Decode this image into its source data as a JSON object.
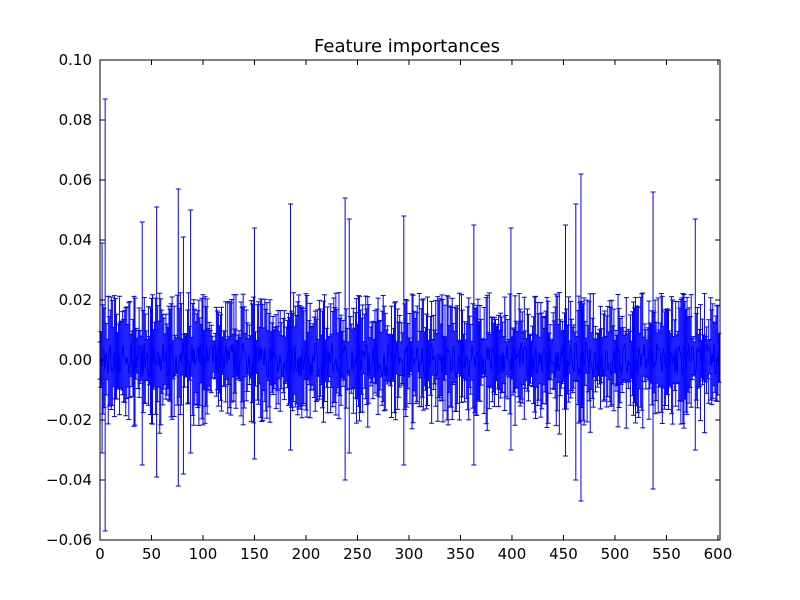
{
  "chart_data": {
    "type": "errorbar",
    "title": "Feature importances",
    "xlabel": "",
    "ylabel": "",
    "xlim": [
      0,
      602
    ],
    "ylim": [
      -0.06,
      0.1
    ],
    "xticks": [
      0,
      50,
      100,
      150,
      200,
      250,
      300,
      350,
      400,
      450,
      500,
      550,
      600
    ],
    "yticks": [
      -0.06,
      -0.04,
      -0.02,
      0.0,
      0.02,
      0.04,
      0.06,
      0.08,
      0.1
    ],
    "ytick_labels": [
      "−0.06",
      "−0.04",
      "−0.02",
      "0.00",
      "0.02",
      "0.04",
      "0.06",
      "0.08",
      "0.10"
    ],
    "xtick_labels": [
      "0",
      "50",
      "100",
      "150",
      "200",
      "250",
      "300",
      "350",
      "400",
      "450",
      "500",
      "550",
      "600"
    ],
    "grid": false,
    "color": "#0000ff",
    "num_features": 602,
    "series": [
      {
        "mean": 0.0,
        "notable_errors": [
          {
            "x": 5,
            "upper": 0.087,
            "lower": -0.057
          },
          {
            "x": 2,
            "upper": 0.039,
            "lower": -0.031
          },
          {
            "x": 41,
            "upper": 0.046,
            "lower": -0.035
          },
          {
            "x": 55,
            "upper": 0.051,
            "lower": -0.039
          },
          {
            "x": 76,
            "upper": 0.057,
            "lower": -0.042
          },
          {
            "x": 81,
            "upper": 0.041,
            "lower": -0.038
          },
          {
            "x": 88,
            "upper": 0.05,
            "lower": -0.031
          },
          {
            "x": 150,
            "upper": 0.044,
            "lower": -0.033
          },
          {
            "x": 185,
            "upper": 0.052,
            "lower": -0.03
          },
          {
            "x": 238,
            "upper": 0.054,
            "lower": -0.04
          },
          {
            "x": 242,
            "upper": 0.047,
            "lower": -0.031
          },
          {
            "x": 295,
            "upper": 0.048,
            "lower": -0.035
          },
          {
            "x": 363,
            "upper": 0.045,
            "lower": -0.035
          },
          {
            "x": 399,
            "upper": 0.044,
            "lower": -0.03
          },
          {
            "x": 452,
            "upper": 0.045,
            "lower": -0.032
          },
          {
            "x": 462,
            "upper": 0.052,
            "lower": -0.04
          },
          {
            "x": 467,
            "upper": 0.062,
            "lower": -0.047
          },
          {
            "x": 537,
            "upper": 0.056,
            "lower": -0.043
          },
          {
            "x": 578,
            "upper": 0.047,
            "lower": -0.03
          }
        ],
        "noise_amplitude": 0.015,
        "seed": 7
      }
    ]
  }
}
